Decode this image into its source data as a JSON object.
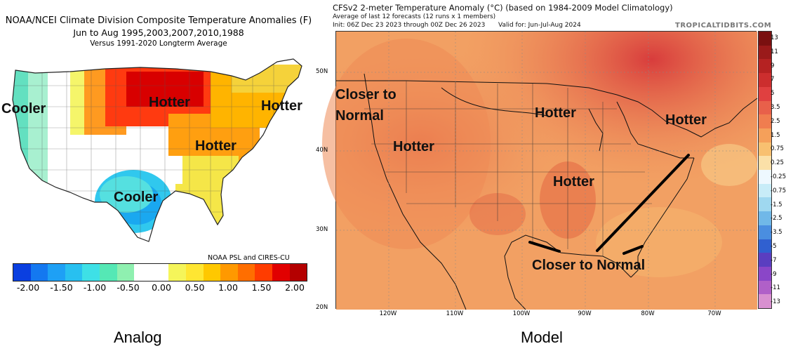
{
  "left": {
    "title_line1": "NOAA/NCEI Climate Division Composite Temperature Anomalies (F)",
    "title_line2": "Jun to Aug   1995,2003,2007,2010,1988",
    "title_line3": "Versus 1991-2020 Longterm Average",
    "credit": "NOAA PSL and CIRES-CU",
    "colorbar": {
      "colors": [
        "#0a3fe0",
        "#1478f0",
        "#1ea0f5",
        "#28c0f0",
        "#3ee0e6",
        "#55e8b5",
        "#8ff0b0",
        "#ffffff",
        "#ffffff",
        "#f5f55a",
        "#ffe632",
        "#ffc800",
        "#ff9900",
        "#ff6e00",
        "#ff3c00",
        "#e10000",
        "#b40000"
      ],
      "tick_labels": [
        "-2.00",
        "-1.50",
        "-1.00",
        "-0.50",
        "0.00",
        "0.50",
        "1.00",
        "1.50",
        "2.00"
      ]
    },
    "annotations": {
      "cooler_west": "Cooler",
      "hotter_north": "Hotter",
      "hotter_northeast": "Hotter",
      "hotter_east": "Hotter",
      "cooler_texas": "Cooler"
    },
    "caption": "Analog"
  },
  "right": {
    "title": "CFSv2 2-meter Temperature Anomaly (°C) (based on 1984-2009 Model Climatology)",
    "subtitle1": "Average of last 12 forecasts (12 runs x 1 members)",
    "init": "Init: 06Z Dec 23 2023 through 00Z Dec 26 2023",
    "valid": "Valid for: Jun-Jul-Aug 2024",
    "brand": "TROPICALTIDBITS.COM",
    "lon_labels": [
      "120W",
      "110W",
      "100W",
      "90W",
      "80W",
      "70W"
    ],
    "lat_labels": [
      "50N",
      "40N",
      "30N",
      "20N"
    ],
    "legend": {
      "labels": [
        "13",
        "11",
        "9",
        "7",
        "5",
        "3.5",
        "2.5",
        "1.5",
        "0.75",
        "0.25",
        "-0.25",
        "-0.75",
        "-1.5",
        "-2.5",
        "-3.5",
        "-5",
        "-7",
        "-9",
        "-11",
        "-13"
      ],
      "colors": [
        "#7a1010",
        "#9a1a1a",
        "#b52222",
        "#cc2e2e",
        "#e04040",
        "#e8604a",
        "#f07d4f",
        "#f5a05a",
        "#f8c070",
        "#fbe0a8",
        "#eef8ff",
        "#c8ecf8",
        "#9fd8f0",
        "#70b8e8",
        "#4a8ee0",
        "#3060d0",
        "#5a3ec0",
        "#8a46c8",
        "#b060c8",
        "#d890d0"
      ]
    },
    "annotations": {
      "closer_west": "Closer to Normal",
      "hotter_west": "Hotter",
      "hotter_north": "Hotter",
      "hotter_northeast": "Hotter",
      "hotter_south": "Hotter",
      "closer_south": "Closer to Normal"
    },
    "caption": "Model"
  }
}
